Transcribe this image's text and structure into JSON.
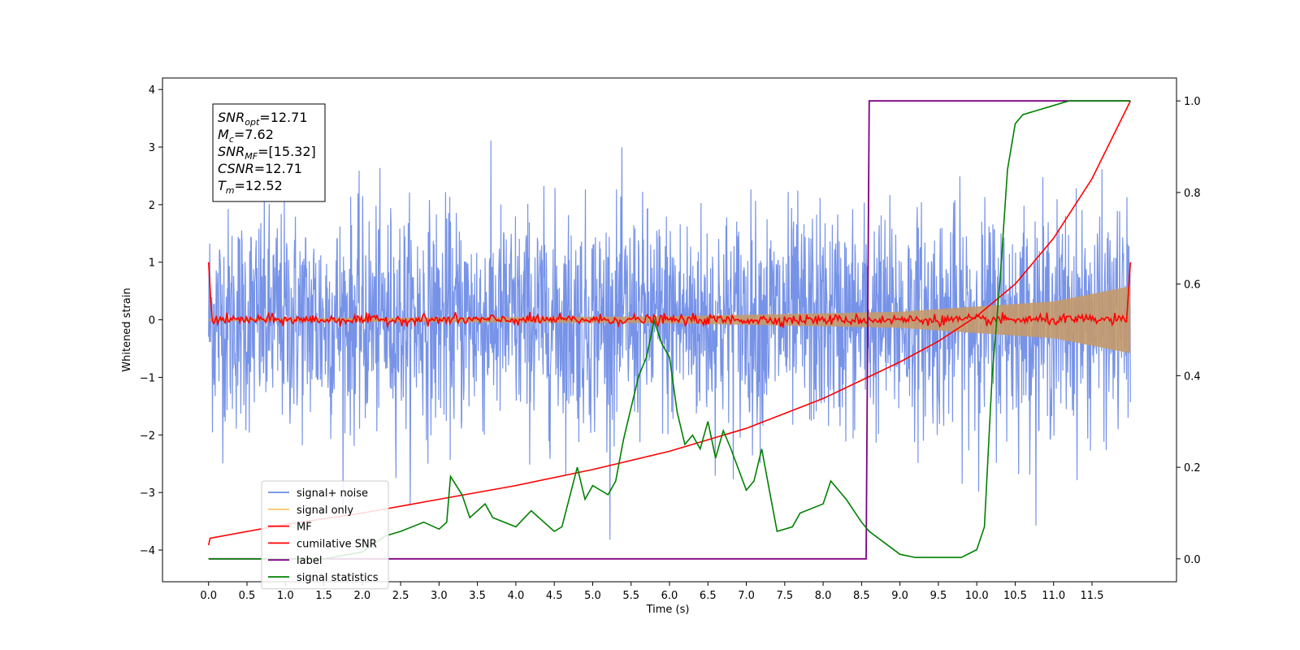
{
  "chart_data": {
    "type": "line",
    "xlabel": "Time (s)",
    "ylabel": "Whitened strain",
    "xlim": [
      -0.6,
      12.6
    ],
    "ylim_left": [
      -4.55,
      4.2
    ],
    "ylim_right": [
      -0.05,
      1.05
    ],
    "x_ticks": [
      0.0,
      0.5,
      1.0,
      1.5,
      2.0,
      2.5,
      3.0,
      3.5,
      4.0,
      4.5,
      5.0,
      5.5,
      6.0,
      6.5,
      7.0,
      7.5,
      8.0,
      8.5,
      9.0,
      9.5,
      10.0,
      10.5,
      11.0,
      11.5
    ],
    "x_tick_labels": [
      "0.0",
      "0.5",
      "1.0",
      "1.5",
      "2.0",
      "2.5",
      "3.0",
      "3.5",
      "4.0",
      "4.5",
      "5.0",
      "5.5",
      "6.0",
      "6.5",
      "7.0",
      "7.5",
      "8.0",
      "8.5",
      "9.0",
      "9.5",
      "10.0",
      "10.5",
      "11.0",
      "11.5"
    ],
    "y_left_ticks": [
      4,
      3,
      2,
      1,
      0,
      -1,
      -2,
      -3,
      -4
    ],
    "y_left_tick_labels": [
      "4",
      "3",
      "2",
      "1",
      "0",
      "−1",
      "−2",
      "−3",
      "−4"
    ],
    "y_right_ticks": [
      1.0,
      0.8,
      0.6,
      0.4,
      0.2,
      0.0
    ],
    "y_right_tick_labels": [
      "1.0",
      "0.8",
      "0.6",
      "0.4",
      "0.2",
      "0.0"
    ],
    "grid": false,
    "legend_position": "lower-left",
    "colors": {
      "signal_noise": "#6b8ae6",
      "signal_only": "#ffb347",
      "signal_only_fill": "#c49a6c",
      "mf": "#ff0000",
      "cumulative_snr": "#ff0000",
      "label": "#800080",
      "signal_statistics": "#008000"
    },
    "series": [
      {
        "name": "signal+ noise",
        "axis": "left",
        "x_range": [
          0.0,
          12.0
        ],
        "amplitude_estimate": 1.0,
        "note_visible": "noise band roughly −2 to +2 with spikes to ±3.5"
      },
      {
        "name": "signal only",
        "axis": "left",
        "x_range": [
          0.0,
          12.0
        ],
        "envelope": [
          [
            0.0,
            0.02
          ],
          [
            6.0,
            0.06
          ],
          [
            9.0,
            0.14
          ],
          [
            11.0,
            0.32
          ],
          [
            12.0,
            0.58
          ]
        ]
      },
      {
        "name": "MF",
        "axis": "left",
        "points": [
          [
            0.0,
            1.0
          ],
          [
            0.03,
            0.3
          ],
          [
            0.1,
            0.05
          ],
          [
            12.0,
            0.0
          ],
          [
            12.0,
            1.0
          ]
        ]
      },
      {
        "name": "cumilative SNR",
        "axis": "right",
        "points": [
          [
            0.0,
            0.03
          ],
          [
            0.02,
            0.045
          ],
          [
            1.0,
            0.075
          ],
          [
            2.0,
            0.1
          ],
          [
            3.0,
            0.13
          ],
          [
            4.0,
            0.16
          ],
          [
            5.0,
            0.195
          ],
          [
            6.0,
            0.235
          ],
          [
            7.0,
            0.285
          ],
          [
            8.0,
            0.35
          ],
          [
            8.5,
            0.39
          ],
          [
            9.0,
            0.43
          ],
          [
            9.5,
            0.475
          ],
          [
            10.0,
            0.53
          ],
          [
            10.5,
            0.6
          ],
          [
            11.0,
            0.7
          ],
          [
            11.5,
            0.83
          ],
          [
            12.0,
            1.0
          ]
        ]
      },
      {
        "name": "label",
        "axis": "right",
        "points": [
          [
            0.0,
            0.0
          ],
          [
            8.56,
            0.0
          ],
          [
            8.6,
            1.0
          ],
          [
            12.0,
            1.0
          ]
        ]
      },
      {
        "name": "signal statistics",
        "axis": "right",
        "points": [
          [
            0.0,
            0.0
          ],
          [
            1.5,
            0.0
          ],
          [
            2.0,
            0.015
          ],
          [
            2.3,
            0.05
          ],
          [
            2.5,
            0.06
          ],
          [
            2.8,
            0.08
          ],
          [
            3.0,
            0.065
          ],
          [
            3.1,
            0.08
          ],
          [
            3.15,
            0.18
          ],
          [
            3.3,
            0.14
          ],
          [
            3.4,
            0.09
          ],
          [
            3.6,
            0.12
          ],
          [
            3.7,
            0.09
          ],
          [
            4.0,
            0.07
          ],
          [
            4.2,
            0.105
          ],
          [
            4.5,
            0.06
          ],
          [
            4.6,
            0.07
          ],
          [
            4.8,
            0.2
          ],
          [
            4.9,
            0.13
          ],
          [
            5.0,
            0.16
          ],
          [
            5.2,
            0.14
          ],
          [
            5.3,
            0.17
          ],
          [
            5.4,
            0.26
          ],
          [
            5.5,
            0.33
          ],
          [
            5.6,
            0.4
          ],
          [
            5.7,
            0.44
          ],
          [
            5.8,
            0.52
          ],
          [
            5.9,
            0.47
          ],
          [
            6.0,
            0.44
          ],
          [
            6.1,
            0.32
          ],
          [
            6.2,
            0.25
          ],
          [
            6.3,
            0.27
          ],
          [
            6.4,
            0.24
          ],
          [
            6.5,
            0.3
          ],
          [
            6.6,
            0.22
          ],
          [
            6.7,
            0.28
          ],
          [
            6.8,
            0.24
          ],
          [
            7.0,
            0.15
          ],
          [
            7.1,
            0.17
          ],
          [
            7.2,
            0.24
          ],
          [
            7.3,
            0.15
          ],
          [
            7.4,
            0.06
          ],
          [
            7.6,
            0.07
          ],
          [
            7.7,
            0.1
          ],
          [
            8.0,
            0.12
          ],
          [
            8.1,
            0.17
          ],
          [
            8.3,
            0.13
          ],
          [
            8.5,
            0.08
          ],
          [
            8.6,
            0.06
          ],
          [
            9.0,
            0.01
          ],
          [
            9.2,
            0.003
          ],
          [
            9.5,
            0.003
          ],
          [
            9.8,
            0.003
          ],
          [
            10.0,
            0.02
          ],
          [
            10.1,
            0.07
          ],
          [
            10.2,
            0.4
          ],
          [
            10.3,
            0.6
          ],
          [
            10.4,
            0.85
          ],
          [
            10.5,
            0.95
          ],
          [
            10.6,
            0.97
          ],
          [
            10.8,
            0.98
          ],
          [
            11.0,
            0.99
          ],
          [
            11.2,
            1.0
          ],
          [
            12.0,
            1.0
          ]
        ]
      }
    ],
    "annotation_box": {
      "lines": [
        {
          "name": "SNR",
          "sub": "opt",
          "value": "=12.71"
        },
        {
          "name": "M",
          "sub": "c",
          "value": "=7.62"
        },
        {
          "name": "SNR",
          "sub": "MF",
          "value": "=[15.32]"
        },
        {
          "name": "CSNR",
          "sub": "",
          "value": "=12.71"
        },
        {
          "name": "T",
          "sub": "m",
          "value": "=12.52"
        }
      ]
    },
    "legend": [
      {
        "label": "signal+ noise",
        "color": "#6b8ae6"
      },
      {
        "label": "signal only",
        "color": "#ffc870"
      },
      {
        "label": "MF",
        "color": "#ff0000"
      },
      {
        "label": "cumilative SNR",
        "color": "#ff0000"
      },
      {
        "label": "label",
        "color": "#800080"
      },
      {
        "label": "signal statistics",
        "color": "#008000"
      }
    ]
  }
}
